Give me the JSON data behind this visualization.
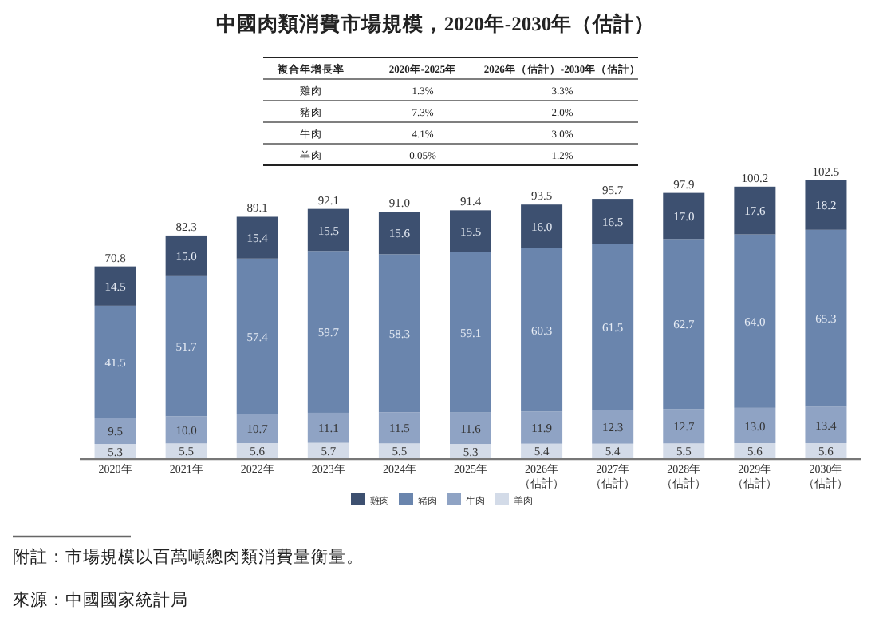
{
  "chart_data": {
    "type": "bar",
    "stacked": true,
    "title": "中國肉類消費市場規模，2020年-2030年（估計）",
    "categories": [
      "2020年",
      "2021年",
      "2022年",
      "2023年",
      "2024年",
      "2025年",
      "2026年（估計）",
      "2027年（估計）",
      "2028年（估計）",
      "2029年（估計）",
      "2030年（估計）"
    ],
    "series": [
      {
        "name": "羊肉",
        "color": "#d3dbe8",
        "values": [
          5.3,
          5.5,
          5.6,
          5.7,
          5.5,
          5.3,
          5.4,
          5.4,
          5.5,
          5.6,
          5.6
        ],
        "value_labels": [
          "5.3",
          "5.5",
          "5.6",
          "5.7",
          "5.5",
          "5.3",
          "5.4",
          "5.4",
          "5.5",
          "5.6",
          "5.6"
        ]
      },
      {
        "name": "牛肉",
        "color": "#8fa3c4",
        "values": [
          9.5,
          10.0,
          10.7,
          11.1,
          11.5,
          11.6,
          11.9,
          12.3,
          12.7,
          13.0,
          13.4
        ],
        "value_labels": [
          "9.5",
          "10.0",
          "10.7",
          "11.1",
          "11.5",
          "11.6",
          "11.9",
          "12.3",
          "12.7",
          "13.0",
          "13.4"
        ]
      },
      {
        "name": "豬肉",
        "color": "#6a85ad",
        "values": [
          41.5,
          51.7,
          57.4,
          59.7,
          58.3,
          59.1,
          60.3,
          61.5,
          62.7,
          64.0,
          65.3
        ],
        "value_labels": [
          "41.5",
          "51.7",
          "57.4",
          "59.7",
          "58.3",
          "59.1",
          "60.3",
          "61.5",
          "62.7",
          "64.0",
          "65.3"
        ]
      },
      {
        "name": "雞肉",
        "color": "#3d5070",
        "values": [
          14.5,
          15.0,
          15.4,
          15.5,
          15.6,
          15.5,
          16.0,
          16.5,
          17.0,
          17.6,
          18.2
        ],
        "value_labels": [
          "14.5",
          "15.0",
          "15.4",
          "15.5",
          "15.6",
          "15.5",
          "16.0",
          "16.5",
          "17.0",
          "17.6",
          "18.2"
        ]
      }
    ],
    "totals": [
      "70.8",
      "82.3",
      "89.1",
      "92.1",
      "91.0",
      "91.4",
      "93.5",
      "95.7",
      "97.9",
      "100.2",
      "102.5"
    ],
    "tick_labels": "x",
    "grid": false,
    "legend": "bottom",
    "annotations": [
      "複合年增長率",
      "2020年-2025年",
      "2026年（估計）-2030年（估計）",
      "雞肉",
      "1.3%",
      "3.3%",
      "豬肉",
      "7.3%",
      "2.0%",
      "牛肉",
      "4.1%",
      "3.0%",
      "羊肉",
      "0.05%",
      "1.2%",
      "附註：市場規模以百萬噸總肉類消費量衡量。",
      "來源：中國國家統計局"
    ]
  }
}
